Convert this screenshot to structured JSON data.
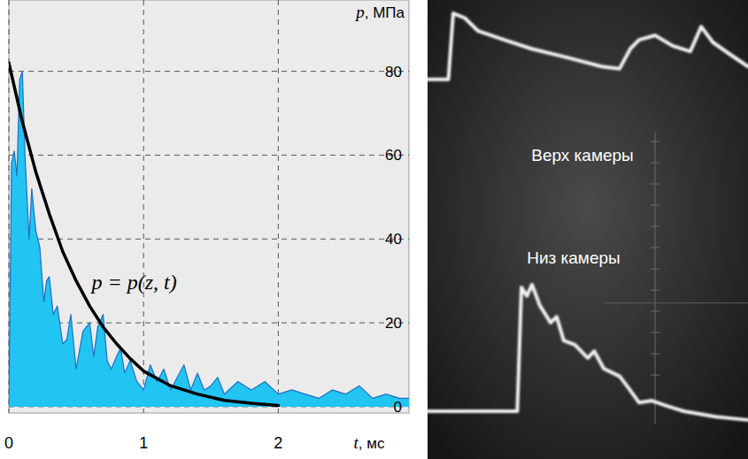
{
  "chart_data": [
    {
      "type": "area",
      "x_label": "t, мс",
      "y_label": "p, МПа",
      "annotation": "p = p(z, t)",
      "xlim": [
        0,
        2.97
      ],
      "ylim": [
        -1.5,
        97
      ],
      "xticks": [
        0,
        1,
        2
      ],
      "yticks": [
        0,
        20,
        40,
        60,
        80
      ],
      "grid": true,
      "series": [
        {
          "type": "area",
          "color": "#22c4f2",
          "x": [
            0,
            0.02,
            0.04,
            0.06,
            0.08,
            0.1,
            0.12,
            0.15,
            0.17,
            0.2,
            0.23,
            0.26,
            0.28,
            0.3,
            0.33,
            0.36,
            0.4,
            0.43,
            0.46,
            0.5,
            0.55,
            0.6,
            0.63,
            0.66,
            0.7,
            0.73,
            0.76,
            0.8,
            0.83,
            0.86,
            0.9,
            0.95,
            1.0,
            1.05,
            1.1,
            1.15,
            1.2,
            1.25,
            1.3,
            1.35,
            1.4,
            1.45,
            1.5,
            1.55,
            1.6,
            1.7,
            1.8,
            1.9,
            2.0,
            2.1,
            2.2,
            2.3,
            2.4,
            2.5,
            2.6,
            2.7,
            2.8,
            2.9,
            2.97
          ],
          "values": [
            0,
            58,
            61,
            55,
            78,
            80,
            60,
            40,
            52,
            42,
            38,
            25,
            30,
            31,
            22,
            24,
            15,
            16,
            22,
            9,
            18,
            20,
            12,
            19,
            22,
            11,
            9,
            12,
            14,
            8,
            11,
            6,
            4,
            10,
            6,
            9,
            4,
            7,
            10,
            4,
            8,
            4,
            5,
            7,
            3,
            6,
            4,
            6,
            3,
            4,
            3,
            2,
            4,
            3,
            5,
            2,
            3,
            2,
            2
          ]
        },
        {
          "type": "line",
          "color": "#000000",
          "x": [
            0,
            0.1,
            0.2,
            0.3,
            0.4,
            0.5,
            0.6,
            0.7,
            0.8,
            0.9,
            1.0,
            1.2,
            1.4,
            1.6,
            1.8,
            2.0
          ],
          "values": [
            82,
            68,
            56,
            46,
            37,
            30,
            24,
            19,
            15,
            11.5,
            8.5,
            5,
            3,
            1.5,
            0.8,
            0.3
          ]
        }
      ]
    },
    {
      "type": "line",
      "tick_labels": false,
      "grid": false,
      "xlim": [
        0,
        100
      ],
      "ylim": [
        0,
        100
      ],
      "annotations": [
        "Верх камеры",
        "Низ камеры"
      ],
      "series": [
        {
          "color": "#f2f2f2",
          "x": [
            0,
            6.5,
            8,
            11.6,
            15.7,
            24,
            32.3,
            43.4,
            54.4,
            59.9,
            63.3,
            66,
            71,
            76.5,
            82,
            85.4,
            89,
            94.5,
            100
          ],
          "values": [
            82.7,
            82.7,
            97.1,
            96.1,
            93.3,
            91.3,
            89.4,
            87.5,
            85.5,
            85,
            89.4,
            91.3,
            92.3,
            90,
            88.8,
            94.2,
            90.8,
            88.1,
            85.5
          ]
        },
        {
          "color": "#f2f2f2",
          "x": [
            0,
            28,
            29.3,
            31,
            32.6,
            35,
            38.4,
            40.3,
            42.5,
            46,
            50,
            52,
            55,
            60,
            63,
            66,
            70,
            75,
            80,
            90,
            100
          ],
          "values": [
            10.4,
            10.4,
            37.4,
            35.5,
            38,
            33.5,
            29.7,
            31,
            25.8,
            24.9,
            22,
            23.5,
            19.7,
            18,
            15.2,
            12.3,
            12.7,
            11.5,
            10.4,
            9.2,
            8.5
          ]
        }
      ]
    }
  ]
}
